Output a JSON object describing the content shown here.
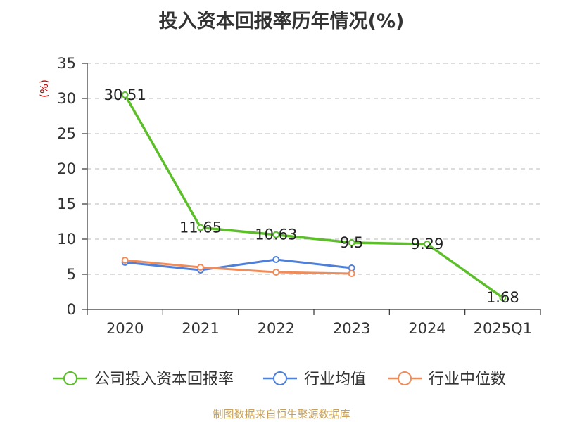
{
  "source": "制图数据来自恒生聚源数据库",
  "chart_data": {
    "type": "line",
    "title": "投入资本回报率历年情况(%)",
    "ylabel": "(%)",
    "xlabel": "",
    "ylim": [
      0,
      35
    ],
    "yticks": [
      0,
      5,
      10,
      15,
      20,
      25,
      30,
      35
    ],
    "grid": true,
    "legend_position": "bottom",
    "categories": [
      "2020",
      "2021",
      "2022",
      "2023",
      "2024",
      "2025Q1"
    ],
    "series": [
      {
        "name": "公司投入资本回报率",
        "color": "#5cbf2a",
        "values": [
          30.51,
          11.65,
          10.63,
          9.5,
          9.29,
          1.68
        ],
        "labels": [
          "30.51",
          "11.65",
          "10.63",
          "9.5",
          "9.29",
          "1.68"
        ]
      },
      {
        "name": "行业均值",
        "color": "#4e7fd9",
        "values": [
          6.7,
          5.6,
          7.1,
          5.9,
          null,
          null
        ]
      },
      {
        "name": "行业中位数",
        "color": "#f08c5a",
        "values": [
          7.0,
          6.0,
          5.3,
          5.1,
          null,
          null
        ]
      }
    ]
  },
  "colors": {
    "unit_label": "#cc0000",
    "axis": "#333333",
    "grid": "#c8c8c8"
  }
}
